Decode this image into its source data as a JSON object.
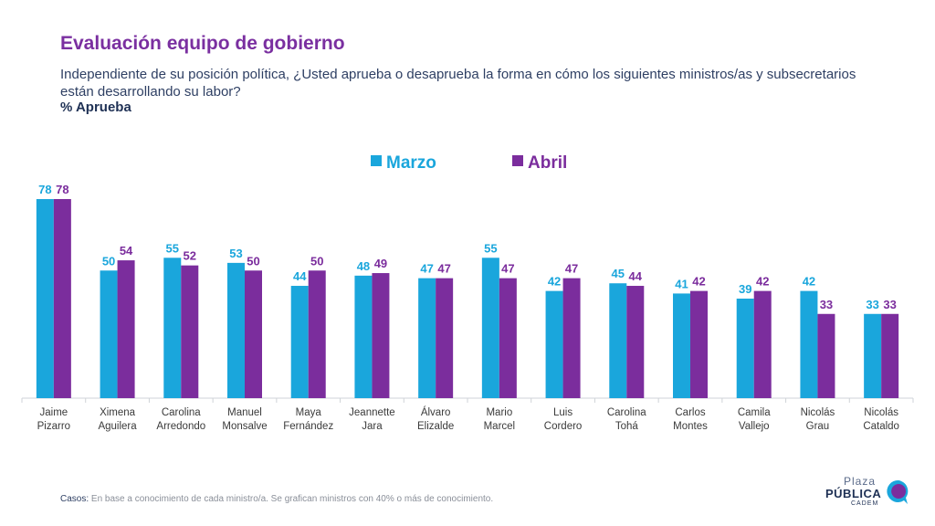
{
  "header": {
    "title": "Evaluación equipo de gobierno",
    "subtitle": "Independiente de su posición política, ¿Usted aprueba o desaprueba la forma en cómo los siguientes ministros/as y subsecretarios están desarrollando su labor?",
    "measure": "% Aprueba"
  },
  "footnote": {
    "label": "Casos:",
    "text": " En base a conocimiento de cada ministro/a. Se grafican ministros con 40% o más de conocimiento."
  },
  "logo": {
    "line1": "Plaza",
    "line2": "PÚBLICA",
    "line3": "CADEM"
  },
  "colors": {
    "marzo": "#1aa6dc",
    "abril": "#7b2d9d",
    "axis": "#cfd3d8",
    "category_text": "#3a3a3a"
  },
  "chart_data": {
    "type": "bar",
    "title": "Evaluación equipo de gobierno",
    "ylabel": "% Aprueba",
    "xlabel": "",
    "ylim": [
      0,
      78
    ],
    "grid": false,
    "legend_position": "top-center",
    "categories": [
      [
        "Jaime",
        "Pizarro"
      ],
      [
        "Ximena",
        "Aguilera"
      ],
      [
        "Carolina",
        "Arredondo"
      ],
      [
        "Manuel",
        "Monsalve"
      ],
      [
        "Maya",
        "Fernández"
      ],
      [
        "Jeannette",
        "Jara"
      ],
      [
        "Álvaro",
        "Elizalde"
      ],
      [
        "Mario",
        "Marcel"
      ],
      [
        "Luis",
        "Cordero"
      ],
      [
        "Carolina",
        "Tohá"
      ],
      [
        "Carlos",
        "Montes"
      ],
      [
        "Camila",
        "Vallejo"
      ],
      [
        "Nicolás",
        "Grau"
      ],
      [
        "Nicolás",
        "Cataldo"
      ]
    ],
    "series": [
      {
        "name": "Marzo",
        "values": [
          78,
          50,
          55,
          53,
          44,
          48,
          47,
          55,
          42,
          45,
          41,
          39,
          42,
          33
        ]
      },
      {
        "name": "Abril",
        "values": [
          78,
          54,
          52,
          50,
          50,
          49,
          47,
          47,
          47,
          44,
          42,
          42,
          33,
          33
        ]
      }
    ]
  }
}
